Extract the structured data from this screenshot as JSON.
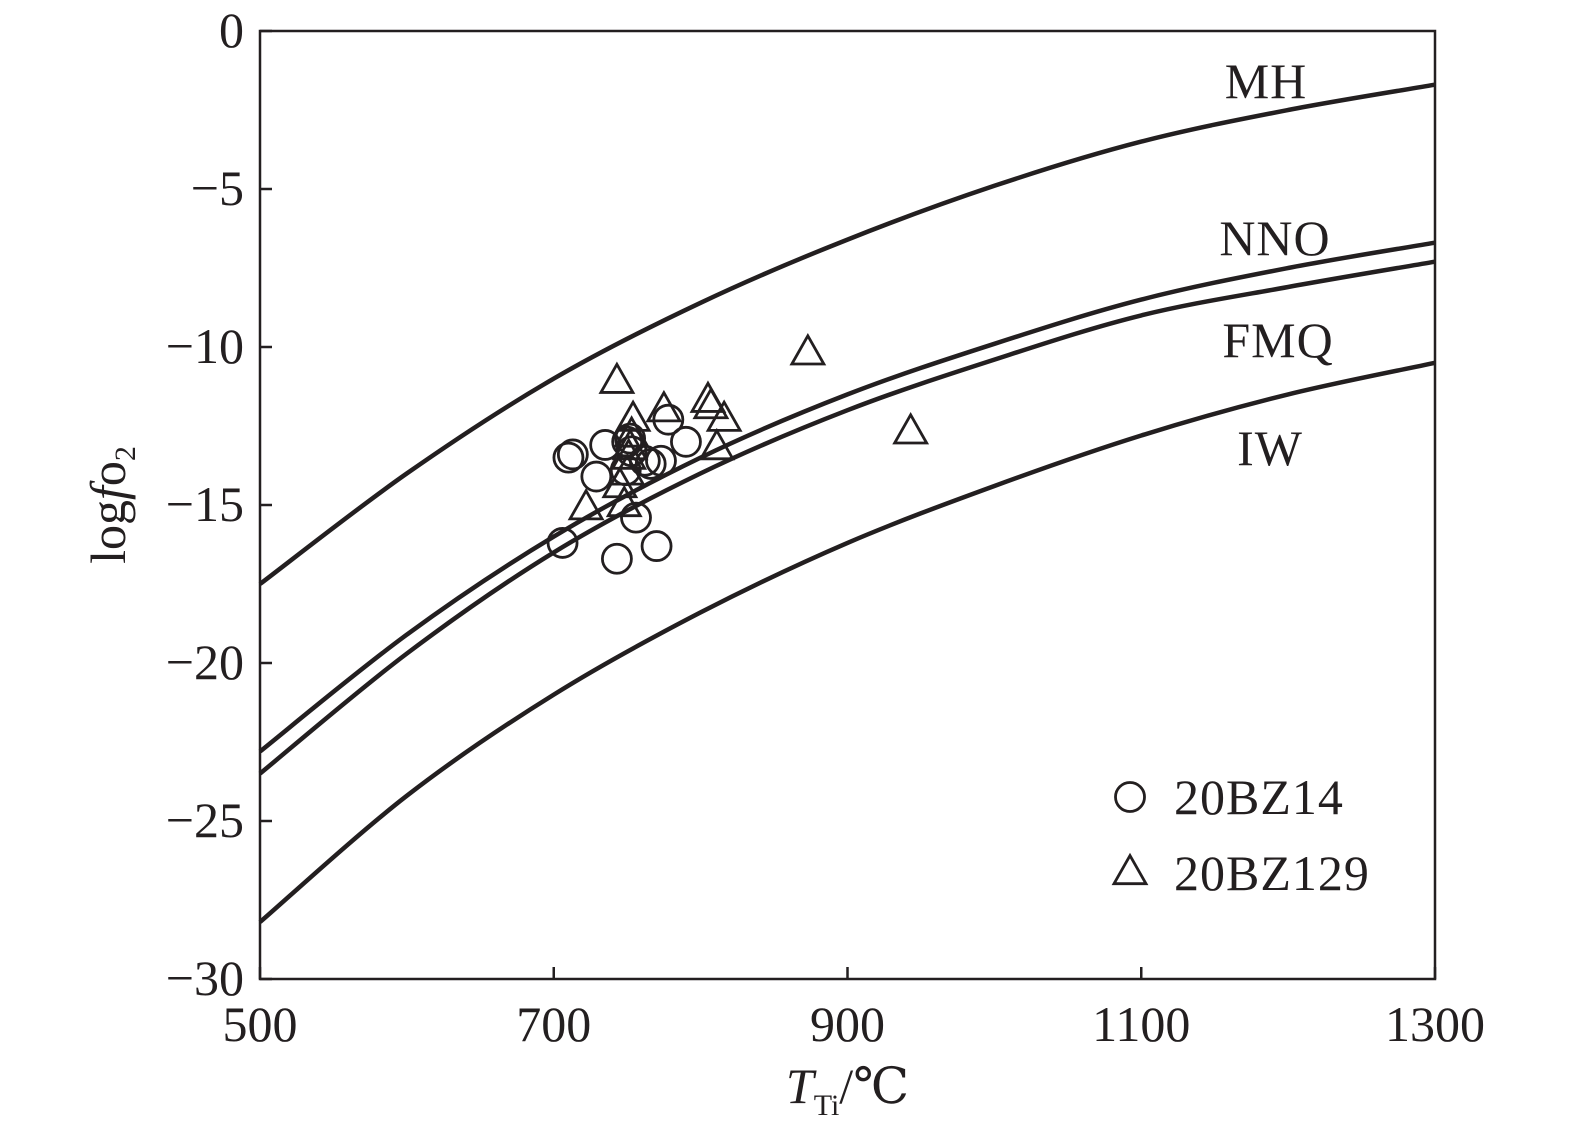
{
  "chart_data": {
    "type": "scatter",
    "xlabel": {
      "main": "T",
      "sub": "Ti",
      "unit": "/℃"
    },
    "ylabel": {
      "pre": "log",
      "italic": "f",
      "mid": "o",
      "sub": "2"
    },
    "xlim": [
      500,
      1300
    ],
    "ylim": [
      -30,
      0
    ],
    "x_ticks": [
      500,
      700,
      900,
      1100,
      1300
    ],
    "x_tick_labels": [
      "500",
      "700",
      "900",
      "1100",
      "1300"
    ],
    "y_ticks": [
      0,
      -5,
      -10,
      -15,
      -20,
      -25,
      -30
    ],
    "y_tick_labels": [
      "0",
      "−5",
      "−10",
      "−15",
      "−20",
      "−25",
      "−30"
    ],
    "grid": false,
    "legend_position": "bottom-right",
    "buffer_curves": [
      {
        "name": "MH",
        "points": [
          [
            500,
            -17.5
          ],
          [
            600,
            -14.0
          ],
          [
            700,
            -11.0
          ],
          [
            800,
            -8.6
          ],
          [
            900,
            -6.6
          ],
          [
            1000,
            -4.9
          ],
          [
            1100,
            -3.5
          ],
          [
            1200,
            -2.5
          ],
          [
            1300,
            -1.7
          ]
        ]
      },
      {
        "name": "NNO",
        "points": [
          [
            500,
            -22.8
          ],
          [
            600,
            -19.1
          ],
          [
            700,
            -16.0
          ],
          [
            800,
            -13.5
          ],
          [
            900,
            -11.5
          ],
          [
            1000,
            -9.9
          ],
          [
            1100,
            -8.5
          ],
          [
            1200,
            -7.5
          ],
          [
            1300,
            -6.7
          ]
        ]
      },
      {
        "name": "FMQ",
        "points": [
          [
            500,
            -23.5
          ],
          [
            600,
            -19.7
          ],
          [
            700,
            -16.5
          ],
          [
            800,
            -14.0
          ],
          [
            900,
            -12.0
          ],
          [
            1000,
            -10.4
          ],
          [
            1100,
            -9.0
          ],
          [
            1200,
            -8.1
          ],
          [
            1300,
            -7.3
          ]
        ]
      },
      {
        "name": "IW",
        "points": [
          [
            500,
            -28.2
          ],
          [
            600,
            -24.2
          ],
          [
            700,
            -21.0
          ],
          [
            800,
            -18.4
          ],
          [
            900,
            -16.2
          ],
          [
            1000,
            -14.4
          ],
          [
            1100,
            -12.8
          ],
          [
            1200,
            -11.5
          ],
          [
            1300,
            -10.5
          ]
        ]
      }
    ],
    "series": [
      {
        "name": "20BZ14",
        "marker": "circle",
        "points": [
          [
            706,
            -16.2
          ],
          [
            710,
            -13.5
          ],
          [
            713,
            -13.4
          ],
          [
            729,
            -14.1
          ],
          [
            735,
            -13.1
          ],
          [
            743,
            -16.7
          ],
          [
            749,
            -13.9
          ],
          [
            750,
            -13.0
          ],
          [
            752,
            -12.9
          ],
          [
            753,
            -13.3
          ],
          [
            756,
            -15.4
          ],
          [
            762,
            -13.6
          ],
          [
            766,
            -13.7
          ],
          [
            770,
            -16.3
          ],
          [
            773,
            -13.6
          ],
          [
            778,
            -12.3
          ],
          [
            790,
            -13.0
          ]
        ]
      },
      {
        "name": "20BZ129",
        "marker": "triangle",
        "points": [
          [
            722,
            -15.1
          ],
          [
            743,
            -11.1
          ],
          [
            745,
            -14.4
          ],
          [
            748,
            -15.0
          ],
          [
            750,
            -14.0
          ],
          [
            751,
            -13.5
          ],
          [
            752,
            -13.2
          ],
          [
            753,
            -12.8
          ],
          [
            754,
            -12.3
          ],
          [
            775,
            -12.0
          ],
          [
            805,
            -11.7
          ],
          [
            807,
            -11.9
          ],
          [
            811,
            -13.2
          ],
          [
            816,
            -12.3
          ],
          [
            873,
            -10.2
          ],
          [
            943,
            -12.7
          ]
        ]
      }
    ]
  }
}
